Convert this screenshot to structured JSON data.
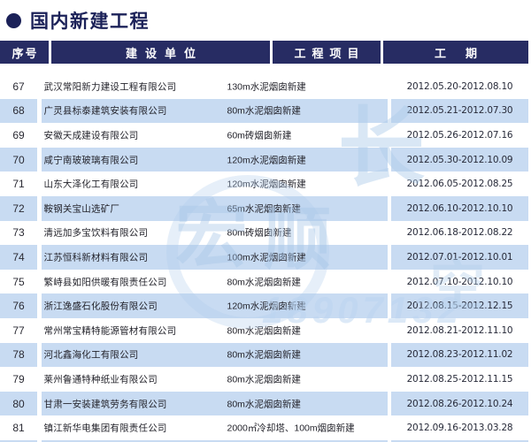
{
  "title": {
    "text": "国内新建工程"
  },
  "colors": {
    "header_bg": "#272c63",
    "title_navy": "#1b2158",
    "row_alt_blue": "#c8dbf2",
    "body_text": "#23232b",
    "watermark_blue": "#a6c5e7"
  },
  "table": {
    "headers": [
      "序号",
      "建设单位",
      "工程项目",
      "工期"
    ],
    "rows": [
      {
        "no": "67",
        "company": "武汉常阳新力建设工程有限公司",
        "project": "130m水泥烟囱新建",
        "period": "2012.05.20-2012.08.10"
      },
      {
        "no": "68",
        "company": "广灵县标泰建筑安装有限公司",
        "project": "80m水泥烟囱新建",
        "period": "2012.05.21-2012.07.30"
      },
      {
        "no": "69",
        "company": "安徽天成建设有限公司",
        "project": "60m砖烟囱新建",
        "period": "2012.05.26-2012.07.16"
      },
      {
        "no": "70",
        "company": "咸宁南玻玻璃有限公司",
        "project": "120m水泥烟囱新建",
        "period": "2012.05.30-2012.10.09"
      },
      {
        "no": "71",
        "company": "山东大泽化工有限公司",
        "project": "120m水泥烟囱新建",
        "period": "2012.06.05-2012.08.25"
      },
      {
        "no": "72",
        "company": "鞍钢关宝山选矿厂",
        "project": "65m水泥烟囱新建",
        "period": "2012.06.10-2012.10.10"
      },
      {
        "no": "73",
        "company": "清远加多宝饮料有限公司",
        "project": "80m砖烟囱新建",
        "period": "2012.06.18-2012.08.22"
      },
      {
        "no": "74",
        "company": "江苏恒科新材料有限公司",
        "project": "100m水泥烟囱新建",
        "period": "2012.07.01-2012.10.01"
      },
      {
        "no": "75",
        "company": "繁峙县如阳供暖有限责任公司",
        "project": "80m水泥烟囱新建",
        "period": "2012.07.10-2012.10.10"
      },
      {
        "no": "76",
        "company": "浙江逸盛石化股份有限公司",
        "project": "120m水泥烟囱新建",
        "period": "2012.08.15-2012.12.15"
      },
      {
        "no": "77",
        "company": "常州常宝精特能源管材有限公司",
        "project": "80m水泥烟囱新建",
        "period": "2012.08.21-2012.11.10"
      },
      {
        "no": "78",
        "company": "河北鑫海化工有限公司",
        "project": "80m水泥烟囱新建",
        "period": "2012.08.23-2012.11.02"
      },
      {
        "no": "79",
        "company": "莱州鲁通特种纸业有限公司",
        "project": "80m水泥烟囱新建",
        "period": "2012.08.25-2012.11.15"
      },
      {
        "no": "80",
        "company": "甘肃一安装建筑劳务有限公司",
        "project": "80m水泥烟囱新建",
        "period": "2012.08.26-2012.10.24"
      },
      {
        "no": "81",
        "company": "镇江新华电集团有限责任公司",
        "project": "2000㎡冷却塔、100m烟囱新建",
        "period": "2012.09.16-2013.03.28"
      }
    ]
  },
  "watermark": {
    "glyphs": [
      "宏",
      "顺",
      "长",
      "空"
    ],
    "digits": "18907132"
  }
}
